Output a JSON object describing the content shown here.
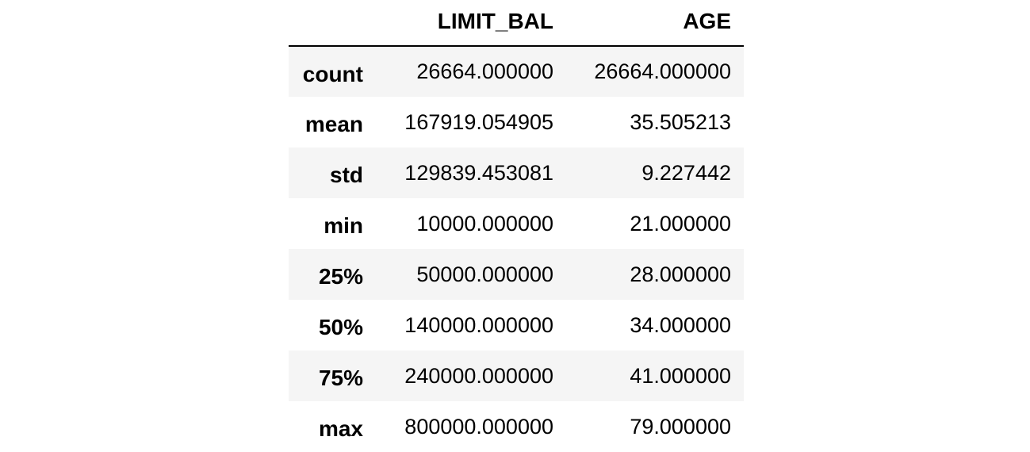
{
  "table": {
    "columns": [
      "",
      "LIMIT_BAL",
      "AGE"
    ],
    "rows": [
      {
        "index": "count",
        "limit_bal": "26664.000000",
        "age": "26664.000000"
      },
      {
        "index": "mean",
        "limit_bal": "167919.054905",
        "age": "35.505213"
      },
      {
        "index": "std",
        "limit_bal": "129839.453081",
        "age": "9.227442"
      },
      {
        "index": "min",
        "limit_bal": "10000.000000",
        "age": "21.000000"
      },
      {
        "index": "25%",
        "limit_bal": "50000.000000",
        "age": "28.000000"
      },
      {
        "index": "50%",
        "limit_bal": "140000.000000",
        "age": "34.000000"
      },
      {
        "index": "75%",
        "limit_bal": "240000.000000",
        "age": "41.000000"
      },
      {
        "index": "max",
        "limit_bal": "800000.000000",
        "age": "79.000000"
      }
    ]
  },
  "colors": {
    "stripe": "#f5f5f5",
    "background": "#ffffff",
    "text": "#000000",
    "header_rule": "#000000"
  }
}
